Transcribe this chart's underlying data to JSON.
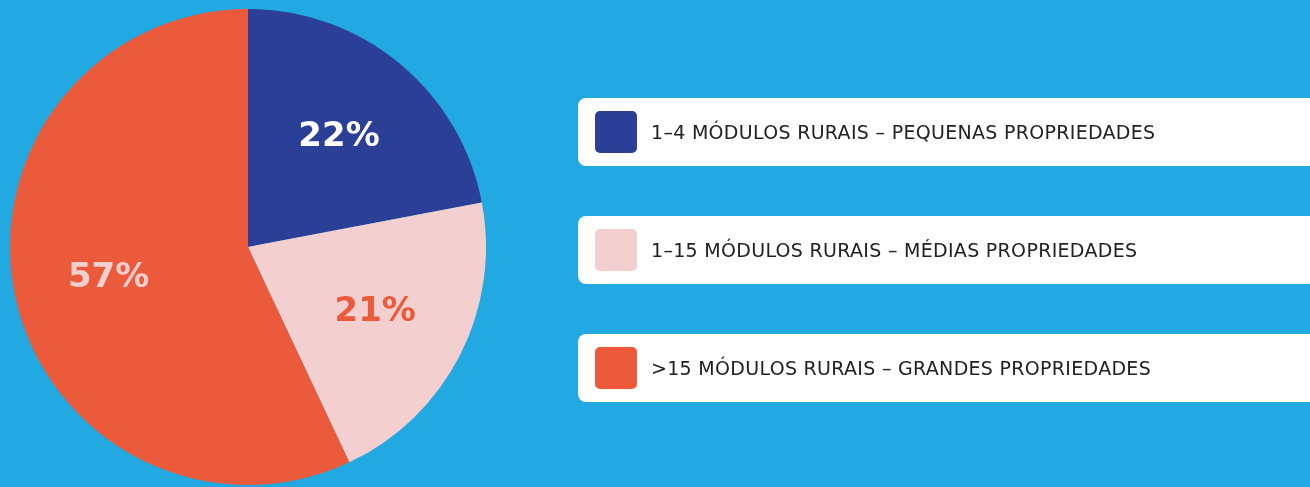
{
  "chart_data": {
    "type": "pie",
    "categories": [
      "1–4 MÓDULOS RURAIS – PEQUENAS PROPRIEDADES",
      "1–15 MÓDULOS RURAIS – MÉDIAS PROPRIEDADES",
      ">15 MÓDULOS RURAIS – GRANDES PROPRIEDADES"
    ],
    "values": [
      22,
      21,
      57
    ],
    "colors": [
      "#2b3f96",
      "#f4cfcf",
      "#eb5a3a"
    ],
    "value_labels": [
      "22%",
      "21%",
      "57%"
    ],
    "legend": "right"
  }
}
